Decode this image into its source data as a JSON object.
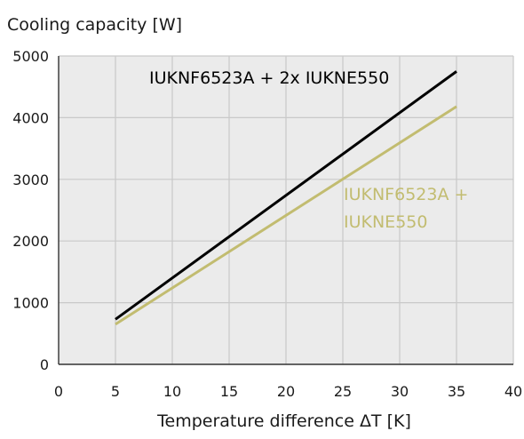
{
  "chart_data": {
    "type": "line",
    "ylabel": "Cooling capacity [W]",
    "xlabel": "Temperature difference ΔT [K]",
    "xlim": [
      0,
      40
    ],
    "ylim": [
      0,
      5000
    ],
    "x_ticks": [
      0,
      5,
      10,
      15,
      20,
      25,
      30,
      35,
      40
    ],
    "y_ticks": [
      0,
      1000,
      2000,
      3000,
      4000,
      5000
    ],
    "grid": true,
    "background_color": "#ebebeb",
    "grid_color": "#c9c9c9",
    "series": [
      {
        "name": "IUKNF6523A + 2x IUKNE550",
        "label_lines": [
          "IUKNF6523A + 2x IUKNE550"
        ],
        "color": "#000000",
        "x": [
          5,
          35
        ],
        "y": [
          730,
          4750
        ]
      },
      {
        "name": "IUKNF6523A + IUKNE550",
        "label_lines": [
          "IUKNF6523A +",
          "IUKNE550"
        ],
        "color": "#c2bc70",
        "x": [
          5,
          35
        ],
        "y": [
          650,
          4180
        ]
      }
    ]
  }
}
